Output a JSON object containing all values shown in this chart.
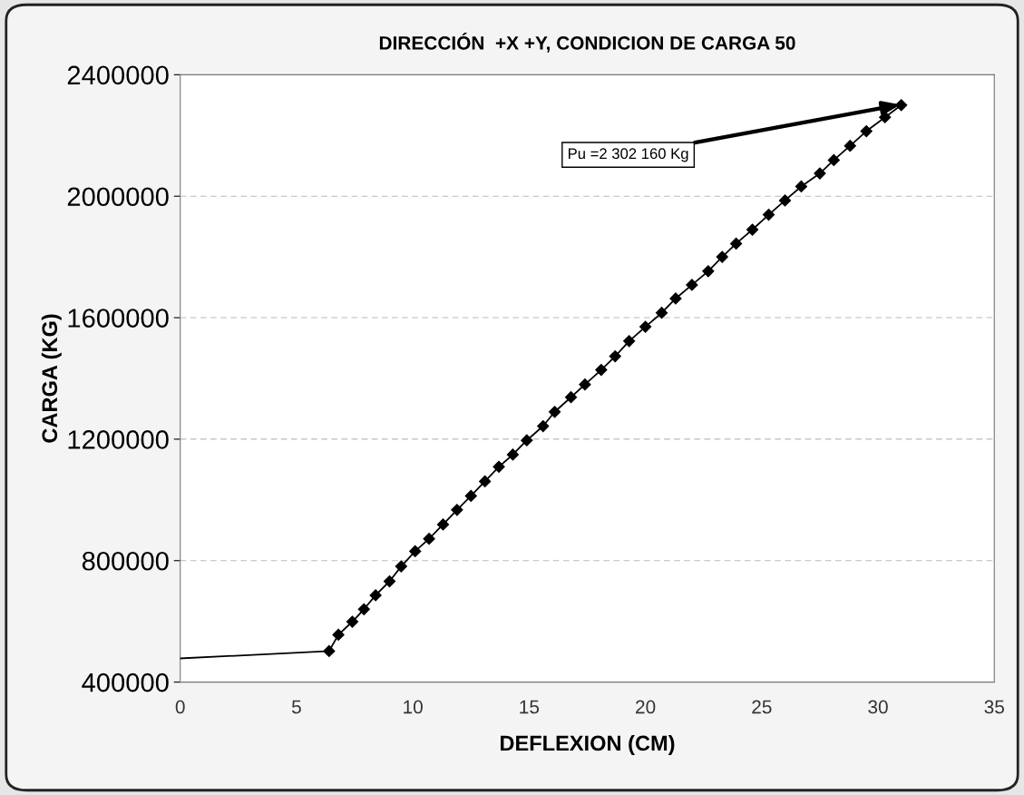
{
  "chart_data": {
    "type": "line",
    "title": "DIRECCIÓN  +X +Y, CONDICION DE CARGA 50",
    "xlabel": "DEFLEXION (CM)",
    "ylabel": "CARGA (KG)",
    "series": [
      {
        "color": "#000000",
        "x": [
          0,
          6.4
        ],
        "values": [
          478000,
          502000
        ]
      },
      {
        "color": "#000000",
        "marker": "diamond",
        "x": [
          6.4,
          6.8,
          7.4,
          7.9,
          8.4,
          9.0,
          9.5,
          10.1,
          10.7,
          11.3,
          11.9,
          12.5,
          13.1,
          13.7,
          14.3,
          14.9,
          15.6,
          16.1,
          16.8,
          17.4,
          18.1,
          18.7,
          19.3,
          20.0,
          20.7,
          21.3,
          22.0,
          22.7,
          23.3,
          23.9,
          24.6,
          25.3,
          26.0,
          26.7,
          27.5,
          28.1,
          28.8,
          29.5,
          30.3,
          31.0
        ],
        "values": [
          502000,
          556000,
          599000,
          640000,
          686000,
          732000,
          781000,
          831000,
          872000,
          919000,
          967000,
          1013000,
          1061000,
          1109000,
          1149000,
          1196000,
          1243000,
          1290000,
          1338000,
          1380000,
          1428000,
          1473000,
          1523000,
          1570000,
          1616000,
          1663000,
          1708000,
          1753000,
          1800000,
          1844000,
          1890000,
          1939000,
          1986000,
          2032000,
          2075000,
          2119000,
          2166000,
          2214000,
          2260000,
          2300000
        ]
      }
    ],
    "annotations": [
      {
        "text": "Pu =2 302 160 Kg",
        "x": 31.0,
        "y": 2302160
      }
    ],
    "xlim": [
      0,
      35
    ],
    "xticks": [
      0,
      5,
      10,
      15,
      20,
      25,
      30,
      35
    ],
    "ylim": [
      400000,
      2400000
    ],
    "yticks": [
      400000,
      800000,
      1200000,
      1600000,
      2000000,
      2400000
    ],
    "grid": "y",
    "legend": false,
    "line_style": "solid"
  }
}
